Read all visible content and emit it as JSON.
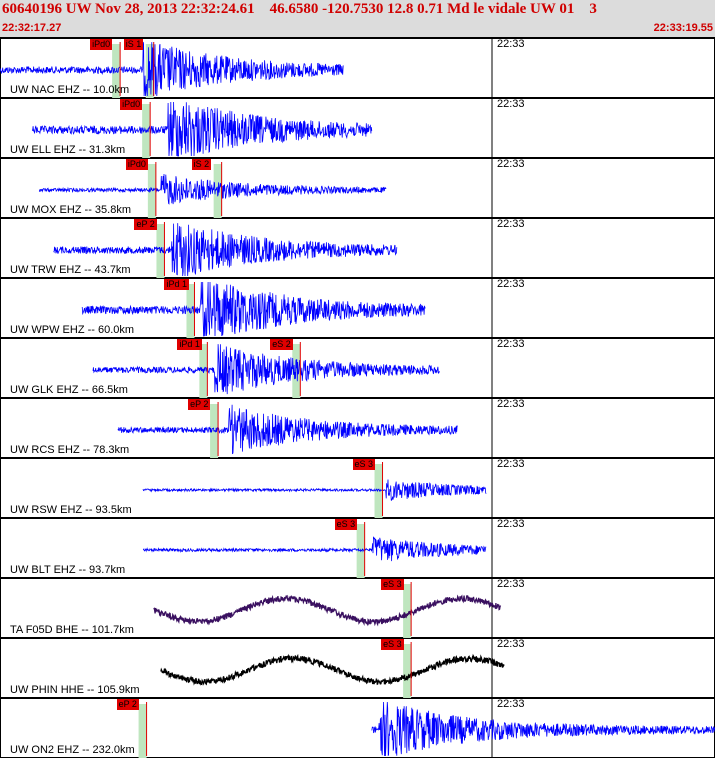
{
  "header": {
    "title": "60640196 UW Nov 28, 2013 22:32:24.61    46.6580 -120.7530 12.8 0.71 Md le vidale UW 01    3",
    "start_time": "22:32:17.27",
    "end_time": "22:33:19.55"
  },
  "colors": {
    "header_bg": "#dcdcdc",
    "header_text": "#d00000",
    "trace_blue": "#0000ff",
    "trace_purple": "#3a1060",
    "trace_black": "#000000",
    "pick_red": "#e00000",
    "window_green": "#bfe6bf"
  },
  "traces": [
    {
      "label": "UW NAC EHZ -- 10.0km",
      "time_tick": "22:33",
      "color": "blue",
      "picks": [
        {
          "label": "iPd0",
          "t": 0.168
        },
        {
          "label": "iS 1",
          "t": 0.215
        }
      ],
      "start": 0.0,
      "end": 0.48,
      "amp": 0.35,
      "burst": 0.2,
      "type": "quake"
    },
    {
      "label": "UW ELL EHZ -- 31.3km",
      "time_tick": "22:33",
      "color": "blue",
      "picks": [
        {
          "label": "iPd0",
          "t": 0.21
        }
      ],
      "start": 0.045,
      "end": 0.52,
      "amp": 0.4,
      "burst": 0.235,
      "type": "quake"
    },
    {
      "label": "UW MOX EHZ -- 35.8km",
      "time_tick": "22:33",
      "color": "blue",
      "picks": [
        {
          "label": "iPd0",
          "t": 0.218
        },
        {
          "label": "iS 2",
          "t": 0.31
        }
      ],
      "start": 0.055,
      "end": 0.54,
      "amp": 0.18,
      "burst": 0.225,
      "type": "quake"
    },
    {
      "label": "UW TRW EHZ -- 43.7km",
      "time_tick": "22:33",
      "color": "blue",
      "picks": [
        {
          "label": "eP 2",
          "t": 0.23
        }
      ],
      "start": 0.075,
      "end": 0.555,
      "amp": 0.35,
      "burst": 0.24,
      "type": "quake"
    },
    {
      "label": "UW WPW EHZ -- 60.0km",
      "time_tick": "22:33",
      "color": "blue",
      "picks": [
        {
          "label": "iPd 1",
          "t": 0.272
        }
      ],
      "start": 0.115,
      "end": 0.595,
      "amp": 0.4,
      "burst": 0.28,
      "type": "quake"
    },
    {
      "label": "UW GLK EHZ -- 66.5km",
      "time_tick": "22:33",
      "color": "blue",
      "picks": [
        {
          "label": "iPd 1",
          "t": 0.29
        },
        {
          "label": "eS 2",
          "t": 0.42
        }
      ],
      "start": 0.13,
      "end": 0.615,
      "amp": 0.3,
      "burst": 0.3,
      "type": "quake"
    },
    {
      "label": "UW RCS EHZ -- 78.3km",
      "time_tick": "22:33",
      "color": "blue",
      "picks": [
        {
          "label": "eP 2",
          "t": 0.305
        }
      ],
      "start": 0.165,
      "end": 0.64,
      "amp": 0.28,
      "burst": 0.32,
      "type": "quake"
    },
    {
      "label": "UW RSW EHZ -- 93.5km",
      "time_tick": "22:33",
      "color": "blue",
      "picks": [
        {
          "label": "eS 3",
          "t": 0.535
        }
      ],
      "start": 0.2,
      "end": 0.68,
      "amp": 0.12,
      "burst": 0.54,
      "type": "noise"
    },
    {
      "label": "UW BLT EHZ -- 93.7km",
      "time_tick": "22:33",
      "color": "blue",
      "picks": [
        {
          "label": "eS 3",
          "t": 0.51
        }
      ],
      "start": 0.2,
      "end": 0.68,
      "amp": 0.15,
      "burst": 0.52,
      "type": "noise"
    },
    {
      "label": "TA F05D BHE -- 101.7km",
      "time_tick": "22:33",
      "color": "purple",
      "picks": [
        {
          "label": "eS 3",
          "t": 0.575
        }
      ],
      "start": 0.215,
      "end": 0.7,
      "amp": 0.35,
      "burst": 0.6,
      "type": "wave"
    },
    {
      "label": "UW PHIN HHE -- 105.9km",
      "time_tick": "22:33",
      "color": "black",
      "picks": [
        {
          "label": "eS 3",
          "t": 0.575
        }
      ],
      "start": 0.225,
      "end": 0.705,
      "amp": 0.35,
      "burst": 0.59,
      "type": "wave"
    },
    {
      "label": "UW ON2 EHZ -- 232.0km",
      "time_tick": "22:33",
      "color": "blue",
      "picks": [
        {
          "label": "eP 2",
          "t": 0.205
        }
      ],
      "start": 0.52,
      "end": 1.0,
      "amp": 0.35,
      "burst": 0.53,
      "type": "noise"
    }
  ]
}
